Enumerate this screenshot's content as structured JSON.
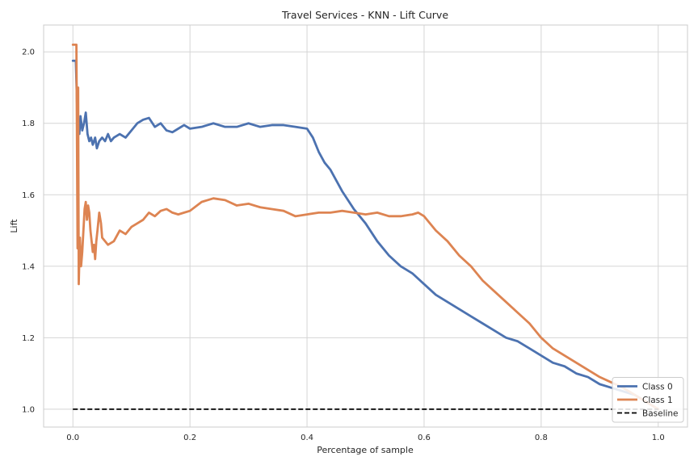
{
  "chart_data": {
    "type": "line",
    "title": "Travel Services - KNN - Lift Curve",
    "xlabel": "Percentage of sample",
    "ylabel": "Lift",
    "xlim": [
      -0.05,
      1.05
    ],
    "ylim": [
      0.95,
      2.075
    ],
    "x_ticks": [
      0.0,
      0.2,
      0.4,
      0.6,
      0.8,
      1.0
    ],
    "y_ticks": [
      1.0,
      1.2,
      1.4,
      1.6,
      1.8,
      2.0
    ],
    "x_tick_labels": [
      "0.0",
      "0.2",
      "0.4",
      "0.6",
      "0.8",
      "1.0"
    ],
    "y_tick_labels": [
      "1.0",
      "1.2",
      "1.4",
      "1.6",
      "1.8",
      "2.0"
    ],
    "grid": true,
    "legend_position": "lower-right",
    "series": [
      {
        "name": "Class 0",
        "color": "#4c72b0",
        "points": [
          [
            0.0,
            1.975
          ],
          [
            0.005,
            1.975
          ],
          [
            0.007,
            1.86
          ],
          [
            0.009,
            1.81
          ],
          [
            0.011,
            1.77
          ],
          [
            0.013,
            1.82
          ],
          [
            0.016,
            1.78
          ],
          [
            0.019,
            1.8
          ],
          [
            0.022,
            1.83
          ],
          [
            0.025,
            1.77
          ],
          [
            0.028,
            1.75
          ],
          [
            0.031,
            1.76
          ],
          [
            0.034,
            1.74
          ],
          [
            0.038,
            1.76
          ],
          [
            0.041,
            1.73
          ],
          [
            0.045,
            1.75
          ],
          [
            0.05,
            1.76
          ],
          [
            0.055,
            1.75
          ],
          [
            0.06,
            1.77
          ],
          [
            0.065,
            1.75
          ],
          [
            0.07,
            1.76
          ],
          [
            0.08,
            1.77
          ],
          [
            0.09,
            1.76
          ],
          [
            0.1,
            1.78
          ],
          [
            0.11,
            1.8
          ],
          [
            0.12,
            1.81
          ],
          [
            0.13,
            1.815
          ],
          [
            0.14,
            1.79
          ],
          [
            0.15,
            1.8
          ],
          [
            0.16,
            1.78
          ],
          [
            0.17,
            1.775
          ],
          [
            0.18,
            1.785
          ],
          [
            0.19,
            1.795
          ],
          [
            0.2,
            1.785
          ],
          [
            0.22,
            1.79
          ],
          [
            0.24,
            1.8
          ],
          [
            0.26,
            1.79
          ],
          [
            0.28,
            1.79
          ],
          [
            0.3,
            1.8
          ],
          [
            0.32,
            1.79
          ],
          [
            0.34,
            1.795
          ],
          [
            0.36,
            1.795
          ],
          [
            0.38,
            1.79
          ],
          [
            0.4,
            1.785
          ],
          [
            0.41,
            1.76
          ],
          [
            0.42,
            1.72
          ],
          [
            0.43,
            1.69
          ],
          [
            0.44,
            1.67
          ],
          [
            0.45,
            1.64
          ],
          [
            0.46,
            1.61
          ],
          [
            0.48,
            1.56
          ],
          [
            0.5,
            1.52
          ],
          [
            0.52,
            1.47
          ],
          [
            0.54,
            1.43
          ],
          [
            0.56,
            1.4
          ],
          [
            0.58,
            1.38
          ],
          [
            0.6,
            1.35
          ],
          [
            0.62,
            1.32
          ],
          [
            0.64,
            1.3
          ],
          [
            0.66,
            1.28
          ],
          [
            0.68,
            1.26
          ],
          [
            0.7,
            1.24
          ],
          [
            0.72,
            1.22
          ],
          [
            0.74,
            1.2
          ],
          [
            0.76,
            1.19
          ],
          [
            0.78,
            1.17
          ],
          [
            0.8,
            1.15
          ],
          [
            0.82,
            1.13
          ],
          [
            0.84,
            1.12
          ],
          [
            0.86,
            1.1
          ],
          [
            0.88,
            1.09
          ],
          [
            0.9,
            1.07
          ],
          [
            0.92,
            1.06
          ],
          [
            0.94,
            1.05
          ],
          [
            0.96,
            1.04
          ],
          [
            0.98,
            1.02
          ],
          [
            1.0,
            1.0
          ]
        ]
      },
      {
        "name": "Class 1",
        "color": "#dd8452",
        "points": [
          [
            0.0,
            2.02
          ],
          [
            0.006,
            2.02
          ],
          [
            0.007,
            1.74
          ],
          [
            0.008,
            1.45
          ],
          [
            0.009,
            1.9
          ],
          [
            0.01,
            1.35
          ],
          [
            0.012,
            1.48
          ],
          [
            0.014,
            1.4
          ],
          [
            0.016,
            1.44
          ],
          [
            0.018,
            1.5
          ],
          [
            0.02,
            1.56
          ],
          [
            0.022,
            1.58
          ],
          [
            0.024,
            1.53
          ],
          [
            0.026,
            1.57
          ],
          [
            0.028,
            1.55
          ],
          [
            0.03,
            1.5
          ],
          [
            0.032,
            1.47
          ],
          [
            0.034,
            1.44
          ],
          [
            0.036,
            1.46
          ],
          [
            0.038,
            1.42
          ],
          [
            0.04,
            1.47
          ],
          [
            0.042,
            1.5
          ],
          [
            0.045,
            1.55
          ],
          [
            0.048,
            1.52
          ],
          [
            0.05,
            1.48
          ],
          [
            0.06,
            1.46
          ],
          [
            0.07,
            1.47
          ],
          [
            0.08,
            1.5
          ],
          [
            0.09,
            1.49
          ],
          [
            0.1,
            1.51
          ],
          [
            0.11,
            1.52
          ],
          [
            0.12,
            1.53
          ],
          [
            0.13,
            1.55
          ],
          [
            0.14,
            1.54
          ],
          [
            0.15,
            1.555
          ],
          [
            0.16,
            1.56
          ],
          [
            0.17,
            1.55
          ],
          [
            0.18,
            1.545
          ],
          [
            0.19,
            1.55
          ],
          [
            0.2,
            1.555
          ],
          [
            0.22,
            1.58
          ],
          [
            0.24,
            1.59
          ],
          [
            0.26,
            1.585
          ],
          [
            0.28,
            1.57
          ],
          [
            0.3,
            1.575
          ],
          [
            0.32,
            1.565
          ],
          [
            0.34,
            1.56
          ],
          [
            0.36,
            1.555
          ],
          [
            0.38,
            1.54
          ],
          [
            0.4,
            1.545
          ],
          [
            0.42,
            1.55
          ],
          [
            0.44,
            1.55
          ],
          [
            0.46,
            1.555
          ],
          [
            0.48,
            1.55
          ],
          [
            0.5,
            1.545
          ],
          [
            0.52,
            1.55
          ],
          [
            0.54,
            1.54
          ],
          [
            0.56,
            1.54
          ],
          [
            0.58,
            1.545
          ],
          [
            0.59,
            1.55
          ],
          [
            0.6,
            1.54
          ],
          [
            0.62,
            1.5
          ],
          [
            0.64,
            1.47
          ],
          [
            0.66,
            1.43
          ],
          [
            0.68,
            1.4
          ],
          [
            0.7,
            1.36
          ],
          [
            0.72,
            1.33
          ],
          [
            0.74,
            1.3
          ],
          [
            0.76,
            1.27
          ],
          [
            0.78,
            1.24
          ],
          [
            0.8,
            1.2
          ],
          [
            0.82,
            1.17
          ],
          [
            0.84,
            1.15
          ],
          [
            0.86,
            1.13
          ],
          [
            0.88,
            1.11
          ],
          [
            0.9,
            1.09
          ],
          [
            0.92,
            1.075
          ],
          [
            0.94,
            1.06
          ],
          [
            0.96,
            1.04
          ],
          [
            0.98,
            1.02
          ],
          [
            1.0,
            1.0
          ]
        ]
      },
      {
        "name": "Baseline",
        "color": "#000000",
        "dashed": true,
        "points": [
          [
            0.0,
            1.0
          ],
          [
            1.0,
            1.0
          ]
        ]
      }
    ]
  }
}
